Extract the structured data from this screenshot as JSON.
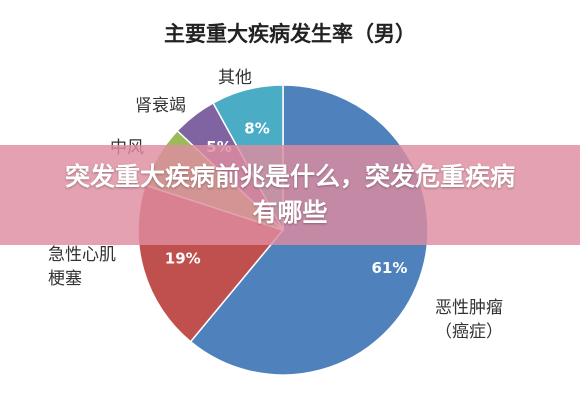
{
  "chart_data": {
    "type": "pie",
    "title": "主要重大疾病发生率（男）",
    "categories": [
      "恶性肿瘤\n（癌症）",
      "急性心肌\n梗塞",
      "中风",
      "肾衰竭",
      "其他"
    ],
    "values": [
      61,
      19,
      7,
      5,
      8
    ],
    "value_labels": [
      "61%",
      "19%",
      null,
      "5%",
      "8%"
    ],
    "colors": [
      "#4f81bd",
      "#c0504d",
      "#9bbb59",
      "#8064a2",
      "#4bacc6"
    ]
  },
  "banner": {
    "text": "突发重大疾病前兆是什么，突发危重疾病有哪些"
  }
}
